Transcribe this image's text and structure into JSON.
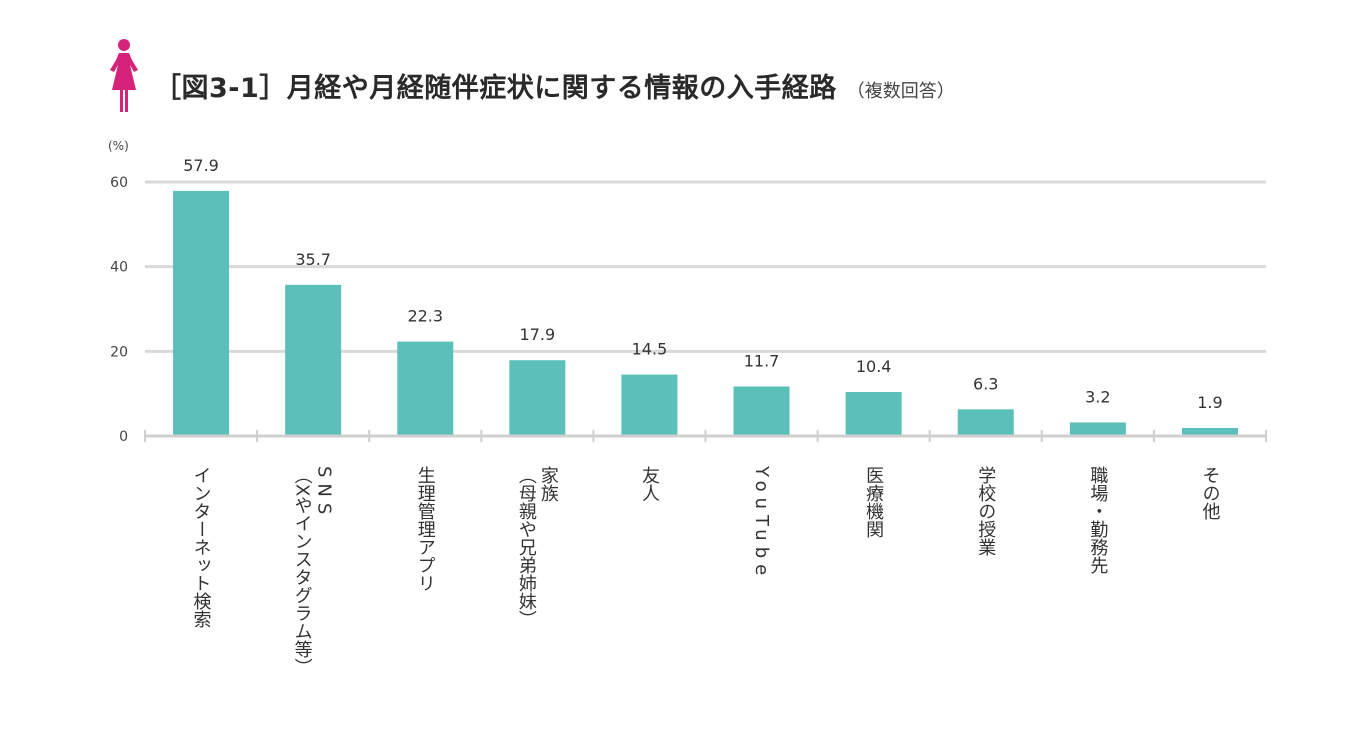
{
  "header": {
    "icon": "woman-icon",
    "title": "［図3-1］月経や月経随伴症状に関する情報の入手経路",
    "subtitle": "（複数回答）"
  },
  "colors": {
    "bar": "#5bbfba",
    "accent": "#d6237a",
    "grid": "#d9d9d9",
    "axis": "#cfcfcf"
  },
  "chart_data": {
    "type": "bar",
    "unit_label": "(%)",
    "ylim": [
      0,
      60
    ],
    "yticks": [
      0,
      20,
      40,
      60
    ],
    "grid": true,
    "categories": [
      [
        "インターネット検索"
      ],
      [
        "SNS",
        "（Xやインスタグラム等）"
      ],
      [
        "生理管理アプリ"
      ],
      [
        "家族",
        "（母親や兄弟姉妹）"
      ],
      [
        "友人"
      ],
      [
        "YouTube"
      ],
      [
        "医療機関"
      ],
      [
        "学校の授業"
      ],
      [
        "職場・勤務先"
      ],
      [
        "その他"
      ]
    ],
    "values": [
      57.9,
      35.7,
      22.3,
      17.9,
      14.5,
      11.7,
      10.4,
      6.3,
      3.2,
      1.9
    ],
    "value_labels": [
      "57.9",
      "35.7",
      "22.3",
      "17.9",
      "14.5",
      "11.7",
      "10.4",
      "6.3",
      "3.2",
      "1.9"
    ]
  }
}
